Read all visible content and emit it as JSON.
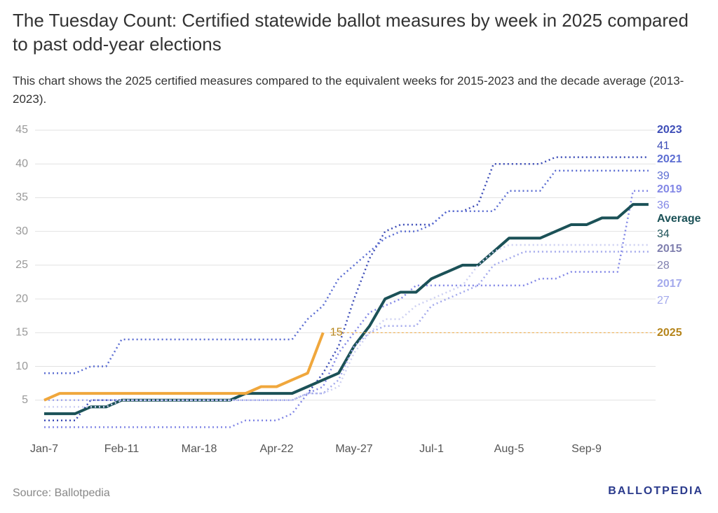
{
  "chart_data": {
    "type": "line",
    "title": "The Tuesday Count: Certified statewide ballot measures by week in 2025 compared to past odd-year elections",
    "subtitle": "This chart shows the 2025 certified measures compared to the equivalent weeks for 2015-2023 and the decade average (2013-2023).",
    "source": "Source: Ballotpedia",
    "logo": "BALLOTPEDIA",
    "categories": [
      "Jan-7",
      null,
      null,
      null,
      null,
      "Feb-11",
      null,
      null,
      null,
      null,
      "Mar-18",
      null,
      null,
      null,
      null,
      "Apr-22",
      null,
      null,
      null,
      null,
      "May-27",
      null,
      null,
      null,
      null,
      "Jul-1",
      null,
      null,
      null,
      null,
      "Aug-5",
      null,
      null,
      null,
      null,
      "Sep-9",
      null,
      null,
      null,
      null
    ],
    "ylim": [
      0,
      45
    ],
    "yticks": [
      5,
      10,
      15,
      20,
      25,
      30,
      35,
      40,
      45
    ],
    "grid": true,
    "series": [
      {
        "name": "2023",
        "color": "#3d4db7",
        "dashed": true,
        "values": [
          2,
          2,
          2,
          5,
          5,
          5,
          5,
          5,
          5,
          5,
          5,
          5,
          5,
          5,
          5,
          5,
          5,
          6,
          9,
          13,
          20,
          26,
          30,
          31,
          31,
          31,
          33,
          33,
          34,
          40,
          40,
          40,
          40,
          41,
          41,
          41,
          41,
          41,
          41,
          41
        ]
      },
      {
        "name": "2021",
        "color": "#5b6dd2",
        "dashed": true,
        "values": [
          9,
          9,
          9,
          10,
          10,
          14,
          14,
          14,
          14,
          14,
          14,
          14,
          14,
          14,
          14,
          14,
          14,
          17,
          19,
          23,
          25,
          27,
          29,
          30,
          30,
          31,
          33,
          33,
          33,
          33,
          36,
          36,
          36,
          39,
          39,
          39,
          39,
          39,
          39,
          39
        ]
      },
      {
        "name": "2019",
        "color": "#8287e6",
        "dashed": true,
        "values": [
          1,
          1,
          1,
          1,
          1,
          1,
          1,
          1,
          1,
          1,
          1,
          1,
          1,
          2,
          2,
          2,
          3,
          6,
          7,
          12,
          15,
          18,
          19,
          20,
          22,
          22,
          22,
          22,
          22,
          22,
          22,
          22,
          23,
          23,
          24,
          24,
          24,
          24,
          36,
          36
        ]
      },
      {
        "name": "Average",
        "color": "#1b5157",
        "dashed": false,
        "values": [
          3,
          3,
          3,
          4,
          4,
          5,
          5,
          5,
          5,
          5,
          5,
          5,
          5,
          6,
          6,
          6,
          6,
          7,
          8,
          9,
          13,
          16,
          20,
          21,
          21,
          23,
          24,
          25,
          25,
          27,
          29,
          29,
          29,
          30,
          31,
          31,
          32,
          32,
          34,
          34
        ]
      },
      {
        "name": "2015",
        "color": "#cdd0f2",
        "dashed": true,
        "values": [
          4,
          4,
          4,
          4,
          4,
          5,
          5,
          5,
          5,
          5,
          5,
          5,
          5,
          5,
          5,
          5,
          5,
          6,
          6,
          7,
          12,
          15,
          17,
          17,
          19,
          20,
          21,
          22,
          25,
          27,
          28,
          28,
          28,
          28,
          28,
          28,
          28,
          28,
          28,
          28
        ]
      },
      {
        "name": "2017",
        "color": "#a3a9ec",
        "dashed": true,
        "values": [
          5,
          5,
          5,
          5,
          5,
          5,
          5,
          5,
          5,
          5,
          5,
          5,
          5,
          5,
          5,
          5,
          5,
          6,
          6,
          8,
          13,
          15,
          16,
          16,
          16,
          19,
          20,
          21,
          22,
          25,
          26,
          27,
          27,
          27,
          27,
          27,
          27,
          27,
          27,
          27
        ]
      },
      {
        "name": "2025",
        "color": "#f0a73c",
        "dashed": false,
        "values": [
          5,
          6,
          6,
          6,
          6,
          6,
          6,
          6,
          6,
          6,
          6,
          6,
          6,
          6,
          7,
          7,
          8,
          9,
          15,
          null,
          null,
          null,
          null,
          null,
          null,
          null,
          null,
          null,
          null,
          null,
          null,
          null,
          null,
          null,
          null,
          null,
          null,
          null,
          null,
          null
        ]
      }
    ]
  }
}
